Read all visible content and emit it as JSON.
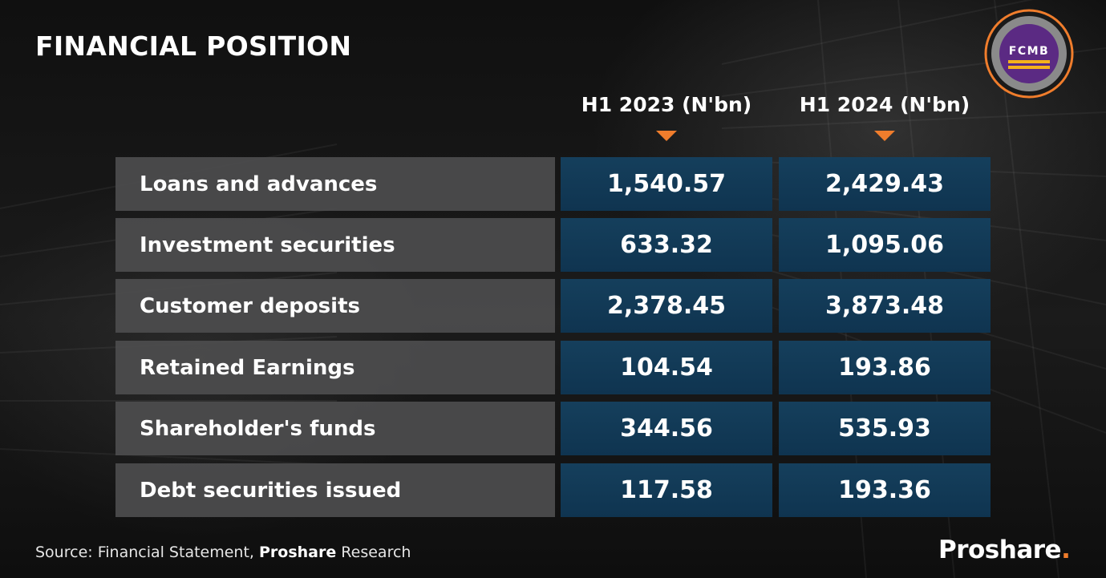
{
  "title": "FINANCIAL POSITION",
  "logo": {
    "text": "FCMB",
    "ring_color": "#f07d2c",
    "inner_color": "#5b2a83",
    "bar_color": "#f5b21b"
  },
  "colors": {
    "accent": "#f07d2c",
    "value_cell": "#133c59",
    "label_cell": "#4c4c4e"
  },
  "chart_data": {
    "type": "table",
    "title": "FINANCIAL POSITION",
    "columns": [
      "H1 2023 (N'bn)",
      "H1 2024 (N'bn)"
    ],
    "rows": [
      {
        "label": "Loans and advances",
        "values": [
          "1,540.57",
          "2,429.43"
        ]
      },
      {
        "label": "Investment securities",
        "values": [
          "633.32",
          "1,095.06"
        ]
      },
      {
        "label": "Customer deposits",
        "values": [
          "2,378.45",
          "3,873.48"
        ]
      },
      {
        "label": "Retained Earnings",
        "values": [
          "104.54",
          "193.86"
        ]
      },
      {
        "label": "Shareholder's funds",
        "values": [
          "344.56",
          "535.93"
        ]
      },
      {
        "label": "Debt securities issued",
        "values": [
          "117.58",
          "193.36"
        ]
      }
    ]
  },
  "source": {
    "prefix": "Source: Financial Statement, ",
    "bold": "Proshare",
    "suffix": " Research"
  },
  "brand": {
    "name": "Proshare",
    "dot": "."
  }
}
